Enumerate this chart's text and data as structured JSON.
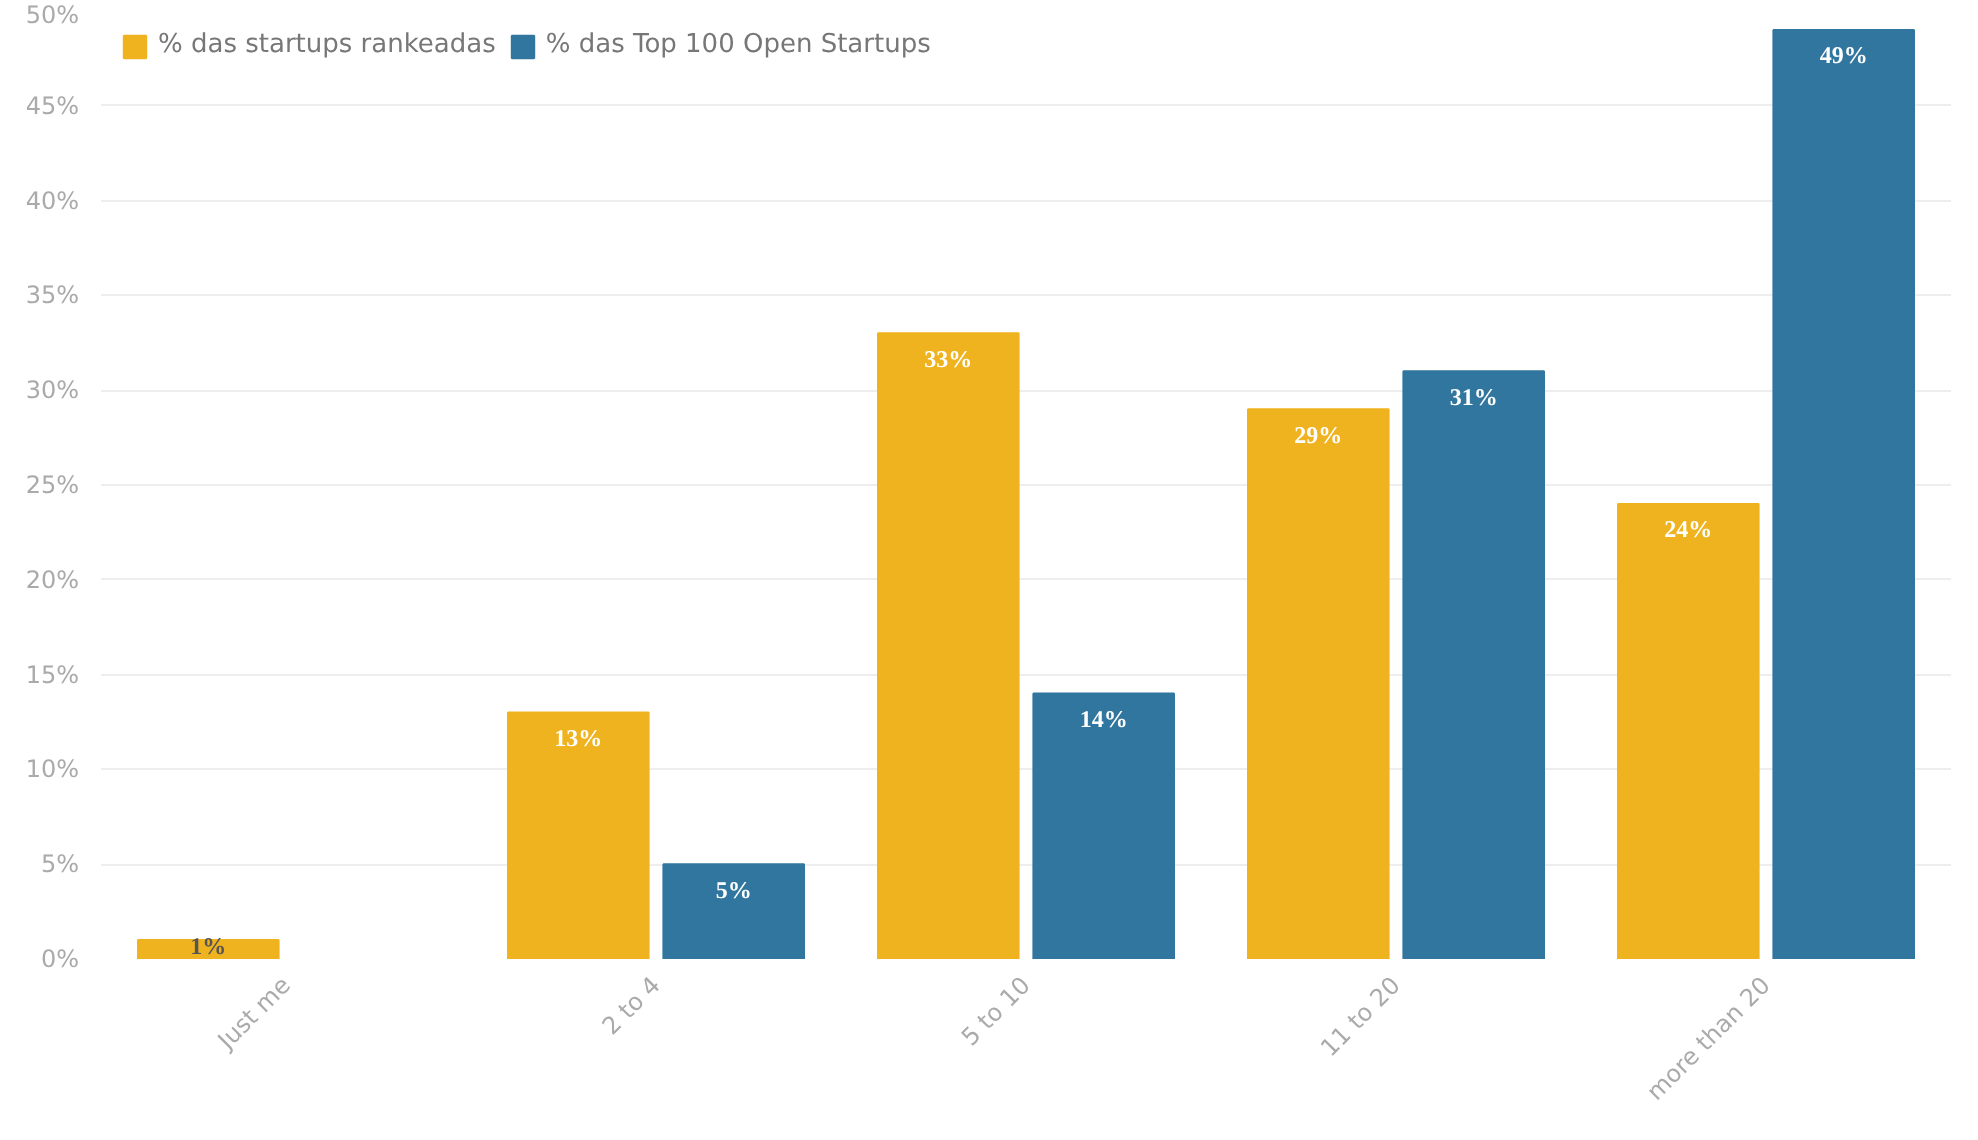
{
  "chart_data": {
    "type": "bar",
    "categories": [
      "Just me",
      "2 to 4",
      "5 to 10",
      "11 to 20",
      "more than 20"
    ],
    "series": [
      {
        "name": "% das startups rankeadas",
        "color": "#efb320",
        "values": [
          1,
          13,
          33,
          29,
          24
        ],
        "value_labels": [
          "1%",
          "13%",
          "33%",
          "29%",
          "24%"
        ]
      },
      {
        "name": "% das Top 100 Open Startups",
        "color": "#31769f",
        "values": [
          null,
          5,
          14,
          31,
          49
        ],
        "value_labels": [
          null,
          "5%",
          "14%",
          "31%",
          "49%"
        ]
      }
    ],
    "ylim": [
      0,
      50
    ],
    "yticks": [
      {
        "value": 0,
        "label": "0%"
      },
      {
        "value": 5,
        "label": "5%"
      },
      {
        "value": 10,
        "label": "10%"
      },
      {
        "value": 15,
        "label": "15%"
      },
      {
        "value": 20,
        "label": "20%"
      },
      {
        "value": 25,
        "label": "25%"
      },
      {
        "value": 30,
        "label": "30%"
      },
      {
        "value": 35,
        "label": "35%"
      },
      {
        "value": 40,
        "label": "40%"
      },
      {
        "value": 45,
        "label": "45%"
      },
      {
        "value": 50,
        "label": "50%"
      }
    ],
    "grid": "y",
    "legend": "top left"
  }
}
